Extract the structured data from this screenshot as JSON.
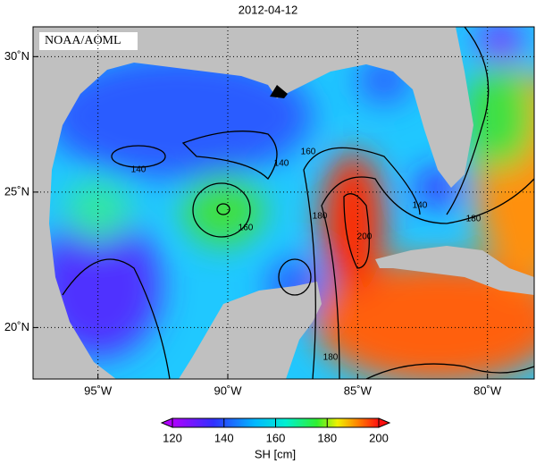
{
  "title": "2012-04-12",
  "watermark": "NOAA/AOML",
  "map": {
    "xlim": [
      -97.5,
      -78.2
    ],
    "ylim": [
      18.1,
      31.1
    ],
    "xticks": [
      {
        "value": -95,
        "label": "95˚W"
      },
      {
        "value": -90,
        "label": "90˚W"
      },
      {
        "value": -85,
        "label": "85˚W"
      },
      {
        "value": -80,
        "label": "80˚W"
      }
    ],
    "yticks": [
      {
        "value": 20,
        "label": "20˚N"
      },
      {
        "value": 25,
        "label": "25˚N"
      },
      {
        "value": 30,
        "label": "30˚N"
      }
    ],
    "contour_labels": [
      140,
      140,
      160,
      160,
      180,
      200,
      180,
      140,
      180
    ]
  },
  "colorbar": {
    "lim": [
      120,
      200
    ],
    "ticks": [
      120,
      140,
      160,
      180,
      200
    ],
    "label": "SH [cm]"
  }
}
